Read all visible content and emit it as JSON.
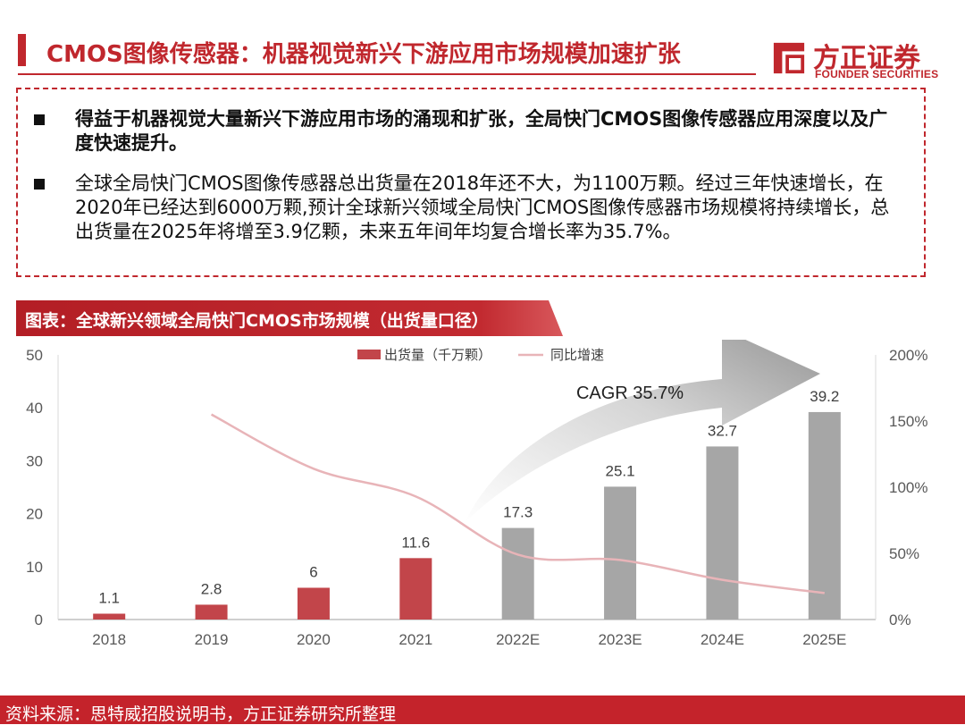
{
  "header": {
    "title": "CMOS图像传感器：机器视觉新兴下游应用市场规模加速扩张",
    "logo_cn": "方正证券",
    "logo_en": "FOUNDER SECURITIES"
  },
  "summary": {
    "bullets": [
      "得益于机器视觉大量新兴下游应用市场的涌现和扩张，全局快门CMOS图像传感器应用深度以及广度快速提升。",
      "全球全局快门CMOS图像传感器总出货量在2018年还不大，为1100万颗。经过三年快速增长，在2020年已经达到6000万颗,预计全球新兴领域全局快门CMOS图像传感器市场规模将持续增长，总出货量在2025年将增至3.9亿颗，未来五年间年均复合增长率为35.7%。"
    ]
  },
  "figure": {
    "label": "图表：全球新兴领域全局快门CMOS市场规模（出货量口径）"
  },
  "chart_data": {
    "type": "bar",
    "categories": [
      "2018",
      "2019",
      "2020",
      "2021",
      "2022E",
      "2023E",
      "2024E",
      "2025E"
    ],
    "series": [
      {
        "name": "出货量（千万颗）",
        "type": "bar",
        "axis": "left",
        "values": [
          1.1,
          2.8,
          6,
          11.6,
          17.3,
          25.1,
          32.7,
          39.2
        ],
        "data_labels": [
          "1.1",
          "2.8",
          "6",
          "11.6",
          "17.3",
          "25.1",
          "32.7",
          "39.2"
        ],
        "colors": [
          "#c2454a",
          "#c2454a",
          "#c2454a",
          "#c2454a",
          "#a6a6a6",
          "#a6a6a6",
          "#a6a6a6",
          "#a6a6a6"
        ]
      },
      {
        "name": "同比增速",
        "type": "line",
        "axis": "right",
        "color": "#e8b4b8",
        "values": [
          null,
          155,
          114,
          93,
          49,
          45,
          30,
          20
        ]
      }
    ],
    "ylim_left": [
      0,
      50
    ],
    "yticks_left": [
      "0",
      "10",
      "20",
      "30",
      "40",
      "50"
    ],
    "ylim_right": [
      0,
      200
    ],
    "yticks_right": [
      "0%",
      "50%",
      "100%",
      "150%",
      "200%"
    ],
    "annotation": "CAGR 35.7%",
    "legend_position": "top-center",
    "grid": false
  },
  "footer": {
    "source": "资料来源：思特威招股说明书，方正证券研究所整理"
  },
  "colors": {
    "brand_red": "#c0272d",
    "bar_actual": "#c2454a",
    "bar_forecast": "#a6a6a6",
    "line": "#e8b4b8"
  }
}
